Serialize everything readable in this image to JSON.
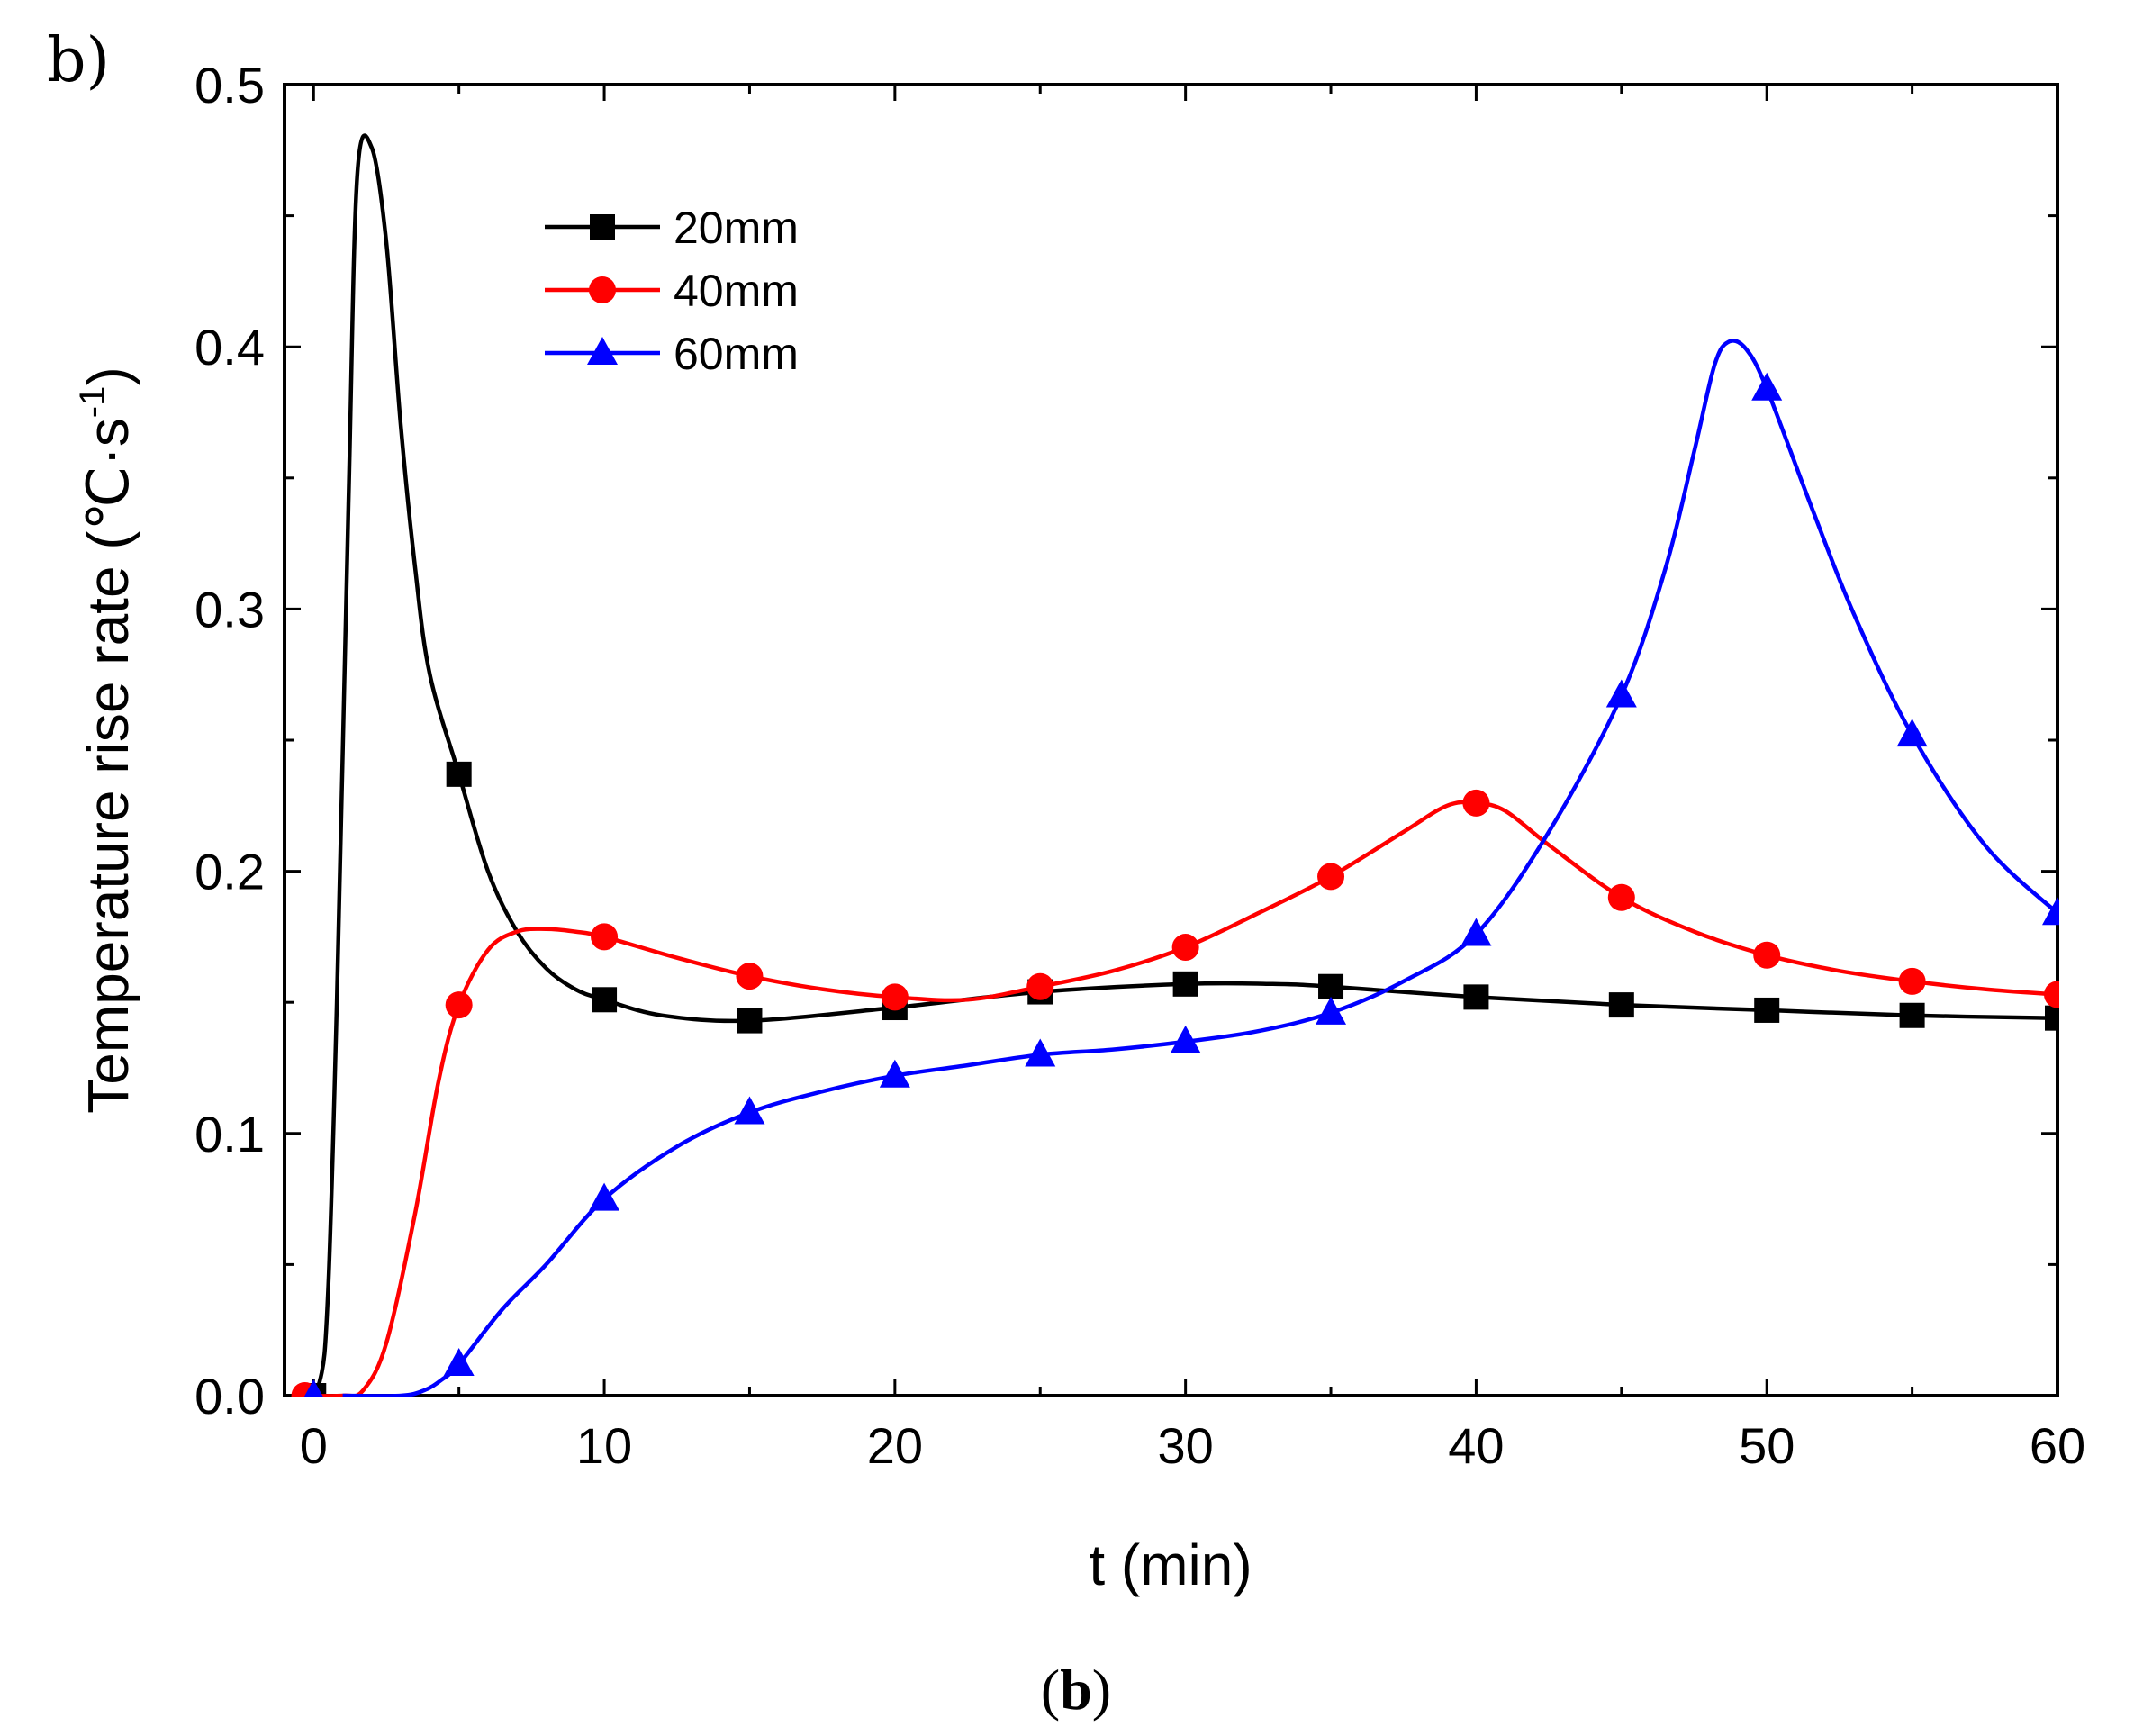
{
  "panel_label": "b)",
  "caption": {
    "open": "(",
    "letter": "b",
    "close": ")"
  },
  "chart_data": {
    "type": "line",
    "title": "",
    "xlabel": "t (min)",
    "ylabel_main": "Temperature rise rate (℃·s",
    "ylabel_sup": "-1",
    "ylabel_close": ")",
    "xlim": [
      -1,
      60
    ],
    "ylim": [
      0,
      0.5
    ],
    "xticks": [
      0,
      10,
      20,
      30,
      40,
      50,
      60
    ],
    "xtick_labels": [
      "0",
      "10",
      "20",
      "30",
      "40",
      "50",
      "60"
    ],
    "yticks": [
      0.0,
      0.1,
      0.2,
      0.3,
      0.4,
      0.5
    ],
    "ytick_labels": [
      "0.0",
      "0.1",
      "0.2",
      "0.3",
      "0.4",
      "0.5"
    ],
    "legend_position": "top-left",
    "series": [
      {
        "name": "20mm",
        "color": "#000000",
        "marker": "square",
        "markers": [
          [
            0,
            0.0
          ],
          [
            5,
            0.237
          ],
          [
            10,
            0.151
          ],
          [
            15,
            0.143
          ],
          [
            20,
            0.148
          ],
          [
            25,
            0.154
          ],
          [
            30,
            0.157
          ],
          [
            35,
            0.156
          ],
          [
            40,
            0.152
          ],
          [
            45,
            0.149
          ],
          [
            50,
            0.147
          ],
          [
            55,
            0.145
          ],
          [
            60,
            0.144
          ]
        ],
        "curve": [
          [
            -0.5,
            0.0
          ],
          [
            0.2,
            0.005
          ],
          [
            0.5,
            0.04
          ],
          [
            0.8,
            0.15
          ],
          [
            1.2,
            0.34
          ],
          [
            1.5,
            0.465
          ],
          [
            2.0,
            0.476
          ],
          [
            2.5,
            0.44
          ],
          [
            3.0,
            0.37
          ],
          [
            3.5,
            0.315
          ],
          [
            4.0,
            0.275
          ],
          [
            5.0,
            0.237
          ],
          [
            6.0,
            0.2
          ],
          [
            7.0,
            0.177
          ],
          [
            8.0,
            0.163
          ],
          [
            9.0,
            0.155
          ],
          [
            10.0,
            0.151
          ],
          [
            12.0,
            0.145
          ],
          [
            15.0,
            0.143
          ],
          [
            20.0,
            0.148
          ],
          [
            25.0,
            0.154
          ],
          [
            30.0,
            0.157
          ],
          [
            33.0,
            0.157
          ],
          [
            35.0,
            0.156
          ],
          [
            40.0,
            0.152
          ],
          [
            45.0,
            0.149
          ],
          [
            50.0,
            0.147
          ],
          [
            55.0,
            0.145
          ],
          [
            60.0,
            0.144
          ]
        ]
      },
      {
        "name": "40mm",
        "color": "#ff0000",
        "marker": "circle",
        "markers": [
          [
            -0.3,
            0.0
          ],
          [
            5,
            0.149
          ],
          [
            10,
            0.175
          ],
          [
            15,
            0.16
          ],
          [
            20,
            0.152
          ],
          [
            25,
            0.156
          ],
          [
            30,
            0.171
          ],
          [
            35,
            0.198
          ],
          [
            40,
            0.226
          ],
          [
            45,
            0.19
          ],
          [
            50,
            0.168
          ],
          [
            55,
            0.158
          ],
          [
            60,
            0.153
          ]
        ],
        "curve": [
          [
            -0.5,
            0.0
          ],
          [
            1.0,
            0.0
          ],
          [
            1.7,
            0.002
          ],
          [
            2.5,
            0.02
          ],
          [
            3.5,
            0.07
          ],
          [
            4.3,
            0.12
          ],
          [
            5.0,
            0.149
          ],
          [
            6.0,
            0.17
          ],
          [
            7.0,
            0.177
          ],
          [
            8.0,
            0.178
          ],
          [
            9.0,
            0.177
          ],
          [
            10.0,
            0.175
          ],
          [
            12.5,
            0.167
          ],
          [
            15.0,
            0.16
          ],
          [
            17.5,
            0.155
          ],
          [
            20.0,
            0.152
          ],
          [
            22.5,
            0.151
          ],
          [
            25.0,
            0.156
          ],
          [
            27.5,
            0.162
          ],
          [
            30.0,
            0.171
          ],
          [
            32.5,
            0.184
          ],
          [
            35.0,
            0.198
          ],
          [
            37.5,
            0.215
          ],
          [
            39.0,
            0.225
          ],
          [
            40.0,
            0.226
          ],
          [
            41.0,
            0.223
          ],
          [
            42.5,
            0.21
          ],
          [
            45.0,
            0.19
          ],
          [
            47.5,
            0.177
          ],
          [
            50.0,
            0.168
          ],
          [
            52.5,
            0.162
          ],
          [
            55.0,
            0.158
          ],
          [
            57.5,
            0.155
          ],
          [
            60.0,
            0.153
          ]
        ]
      },
      {
        "name": "60mm",
        "color": "#0000ff",
        "marker": "triangle",
        "markers": [
          [
            0,
            0.0
          ],
          [
            5,
            0.012
          ],
          [
            10,
            0.075
          ],
          [
            15,
            0.108
          ],
          [
            20,
            0.122
          ],
          [
            25,
            0.13
          ],
          [
            30,
            0.135
          ],
          [
            35,
            0.146
          ],
          [
            40,
            0.176
          ],
          [
            45,
            0.267
          ],
          [
            50,
            0.384
          ],
          [
            55,
            0.252
          ],
          [
            60,
            0.184
          ]
        ],
        "curve": [
          [
            1.0,
            0.0
          ],
          [
            3.0,
            0.0
          ],
          [
            3.8,
            0.002
          ],
          [
            4.4,
            0.006
          ],
          [
            5.0,
            0.012
          ],
          [
            6.5,
            0.033
          ],
          [
            8.0,
            0.05
          ],
          [
            10.0,
            0.075
          ],
          [
            12.5,
            0.095
          ],
          [
            15.0,
            0.108
          ],
          [
            17.5,
            0.116
          ],
          [
            20.0,
            0.122
          ],
          [
            22.5,
            0.126
          ],
          [
            25.0,
            0.13
          ],
          [
            27.5,
            0.132
          ],
          [
            30.0,
            0.135
          ],
          [
            32.5,
            0.139
          ],
          [
            35.0,
            0.146
          ],
          [
            37.5,
            0.158
          ],
          [
            40.0,
            0.176
          ],
          [
            42.5,
            0.215
          ],
          [
            45.0,
            0.267
          ],
          [
            46.5,
            0.315
          ],
          [
            47.5,
            0.36
          ],
          [
            48.2,
            0.393
          ],
          [
            48.7,
            0.402
          ],
          [
            49.3,
            0.399
          ],
          [
            50.0,
            0.384
          ],
          [
            51.5,
            0.34
          ],
          [
            53.0,
            0.298
          ],
          [
            55.0,
            0.252
          ],
          [
            57.5,
            0.21
          ],
          [
            60.0,
            0.184
          ]
        ]
      }
    ]
  }
}
